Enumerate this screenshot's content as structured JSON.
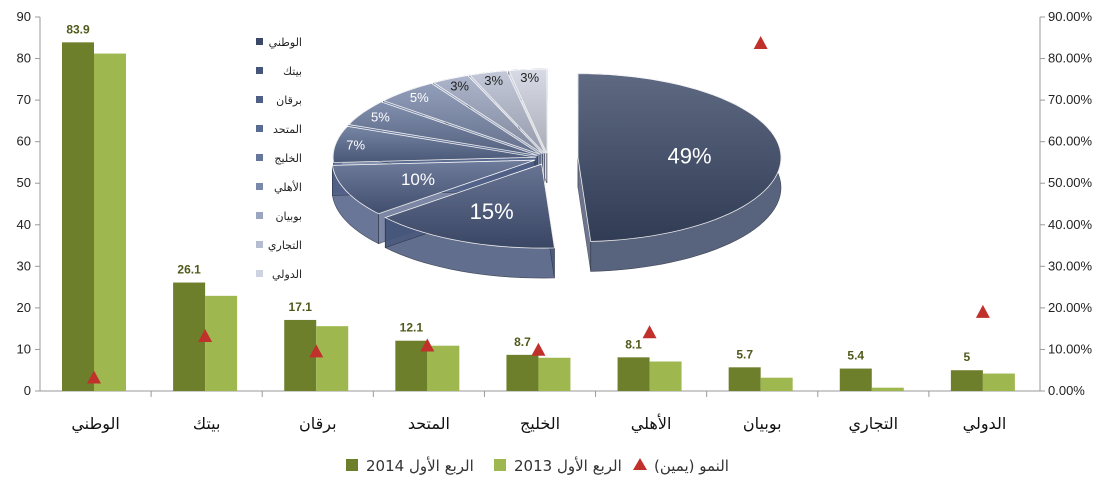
{
  "chart_data": [
    {
      "type": "bar",
      "categories": [
        "الوطني",
        "بيتك",
        "برقان",
        "المتحد",
        "الخليج",
        "الأهلي",
        "بوبيان",
        "التجاري",
        "الدولي"
      ],
      "series": [
        {
          "name": "الربع الأول 2014",
          "values": [
            83.9,
            26.1,
            17.1,
            12.1,
            8.7,
            8.1,
            5.7,
            5.4,
            5
          ],
          "color": "#6e7f2b"
        },
        {
          "name": "الربع الأول 2013",
          "values": [
            81.2,
            22.9,
            15.6,
            10.9,
            8.0,
            7.1,
            3.2,
            0.8,
            4.2
          ],
          "color": "#9eb84f"
        },
        {
          "name": "النمو (يمين)",
          "axis": "right",
          "values": [
            0.03,
            0.13,
            0.093,
            0.107,
            0.097,
            0.139,
            0.835,
            "",
            0.188
          ],
          "color": "#c0312b"
        }
      ],
      "data_labels": [
        "83.9",
        "26.1",
        "17.1",
        "12.1",
        "8.7",
        "8.1",
        "5.7",
        "5.4",
        "5"
      ],
      "ylim": [
        0,
        90
      ],
      "yticks": [
        "0",
        "10",
        "20",
        "30",
        "40",
        "50",
        "60",
        "70",
        "80",
        "90"
      ],
      "y2lim": [
        0,
        0.9
      ],
      "y2ticks": [
        "0.00%",
        "10.00%",
        "20.00%",
        "30.00%",
        "40.00%",
        "50.00%",
        "60.00%",
        "70.00%",
        "80.00%",
        "90.00%"
      ],
      "grid": false,
      "legend_position": "bottom",
      "legend": [
        "النمو (يمين)",
        "الربع الأول 2013",
        "الربع الأول 2014"
      ]
    },
    {
      "type": "pie",
      "labels": [
        "الوطني",
        "بيتك",
        "برقان",
        "المتحد",
        "الخليج",
        "الأهلي",
        "بوبيان",
        "التجاري",
        "الدولي"
      ],
      "values": [
        49,
        15,
        10,
        7,
        5,
        5,
        3,
        3,
        3
      ],
      "pct_labels": [
        "49%",
        "15%",
        "10%",
        "7%",
        "5%",
        "5%",
        "3%",
        "3%",
        "3%"
      ],
      "colors": [
        "#3b4867",
        "#46557a",
        "#4f5f86",
        "#5a6b92",
        "#66779c",
        "#7a89ab",
        "#9ba5c0",
        "#b6bdd1",
        "#cfd3e0"
      ],
      "legend_position": "left"
    }
  ]
}
